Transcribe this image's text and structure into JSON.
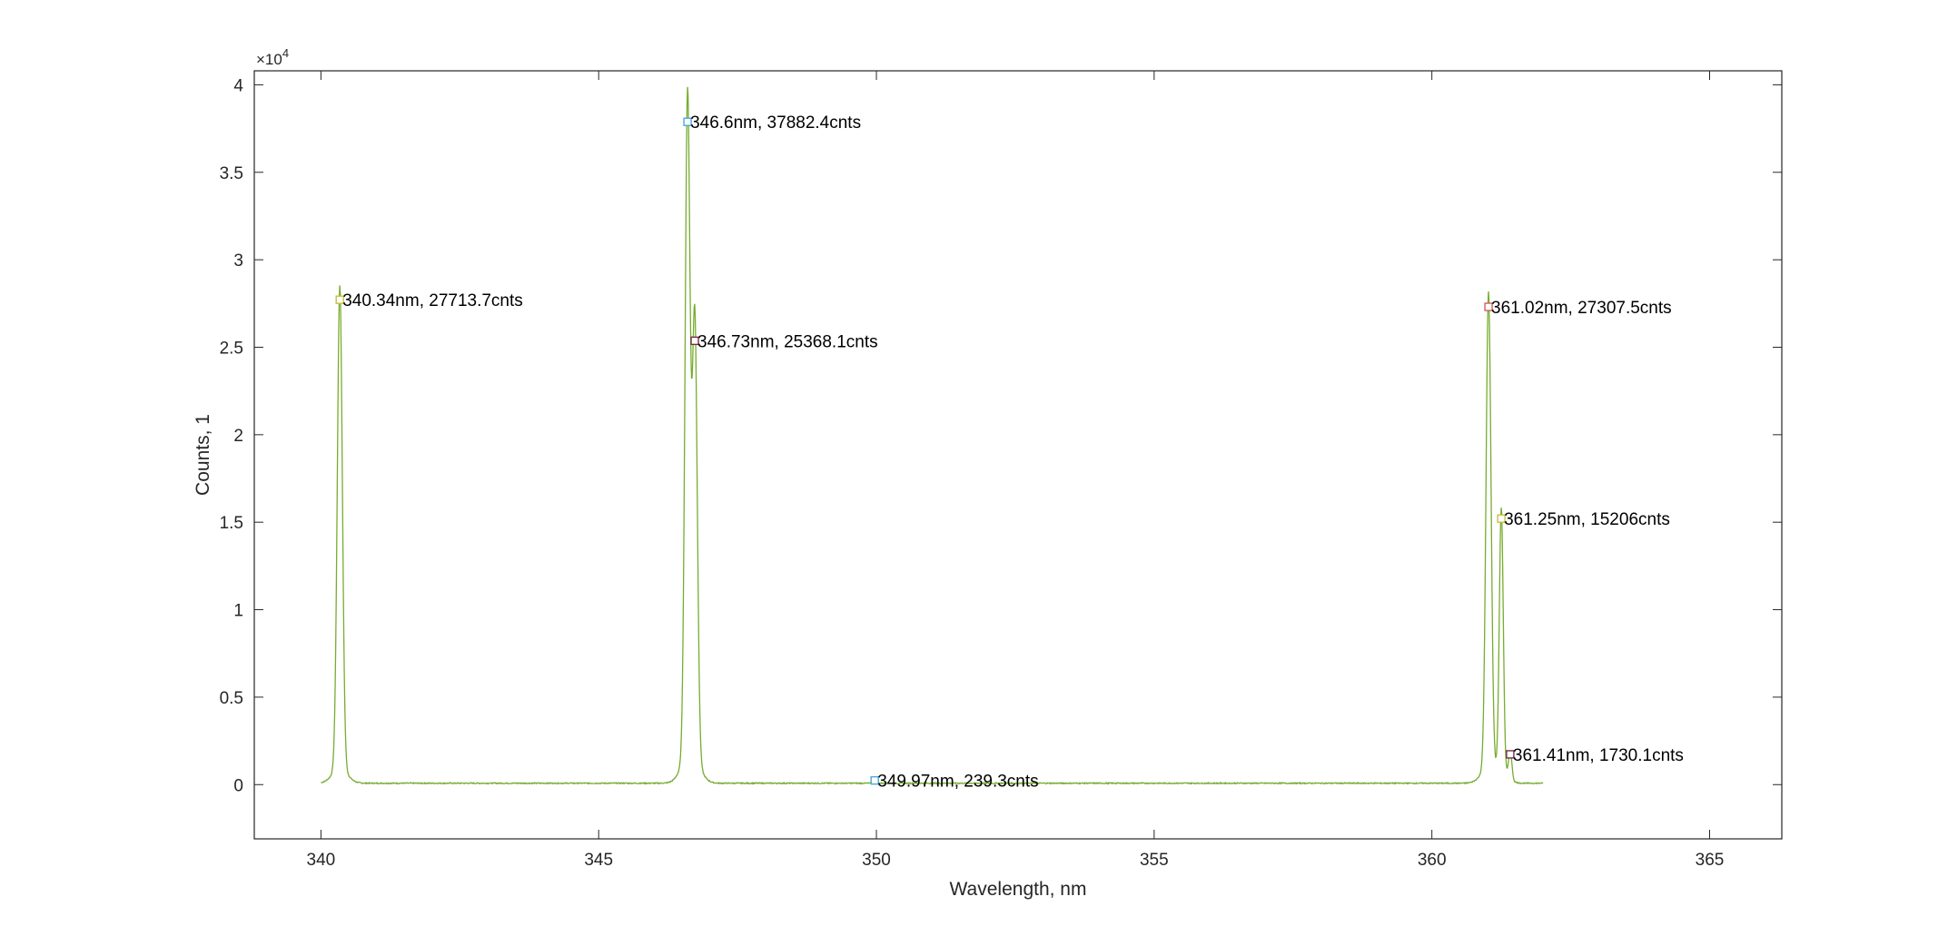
{
  "chart_data": {
    "type": "line",
    "xlabel": "Wavelength, nm",
    "ylabel": "Counts, 1",
    "y_exponent_label": "×10",
    "y_exponent_power": "4",
    "xlim": [
      338.8,
      366.3
    ],
    "ylim": [
      -3100,
      40800
    ],
    "y_scale_factor": 10000,
    "xticks": [
      340,
      345,
      350,
      355,
      360,
      365
    ],
    "xtick_labels": [
      "340",
      "345",
      "350",
      "355",
      "360",
      "365"
    ],
    "yticks": [
      0,
      5000,
      10000,
      15000,
      20000,
      25000,
      30000,
      35000,
      40000
    ],
    "ytick_labels": [
      "0",
      "0.5",
      "1",
      "1.5",
      "2",
      "2.5",
      "3",
      "3.5",
      "4"
    ],
    "grid": false,
    "legend": "none",
    "series": [
      {
        "color": "#77ac30",
        "baseline": 80,
        "x_range": [
          340.0,
          362.0
        ],
        "peaks": [
          {
            "x": 340.34,
            "y": 27713.7,
            "w": 0.045
          },
          {
            "x": 346.6,
            "y": 37882.4,
            "w": 0.045
          },
          {
            "x": 346.73,
            "y": 25368.1,
            "w": 0.045
          },
          {
            "x": 361.02,
            "y": 27307.5,
            "w": 0.045
          },
          {
            "x": 361.25,
            "y": 15206,
            "w": 0.035
          },
          {
            "x": 361.41,
            "y": 1730.1,
            "w": 0.03
          }
        ]
      }
    ],
    "annotations": [
      {
        "x": 340.34,
        "y": 27713.7,
        "label": "340.34nm, 27713.7cnts",
        "marker_color": "#c8c040"
      },
      {
        "x": 346.6,
        "y": 37882.4,
        "label": "346.6nm, 37882.4cnts",
        "marker_color": "#4aa8d8"
      },
      {
        "x": 346.73,
        "y": 25368.1,
        "label": "346.73nm, 25368.1cnts",
        "marker_color": "#7a2a4a"
      },
      {
        "x": 349.97,
        "y": 239.3,
        "label": "349.97nm, 239.3cnts",
        "marker_color": "#4aa8d8"
      },
      {
        "x": 361.02,
        "y": 27307.5,
        "label": "361.02nm, 27307.5cnts",
        "marker_color": "#d06060"
      },
      {
        "x": 361.25,
        "y": 15206,
        "label": "361.25nm, 15206cnts",
        "marker_color": "#c8c040"
      },
      {
        "x": 361.41,
        "y": 1730.1,
        "label": "361.41nm, 1730.1cnts",
        "marker_color": "#7a2a4a"
      }
    ]
  }
}
